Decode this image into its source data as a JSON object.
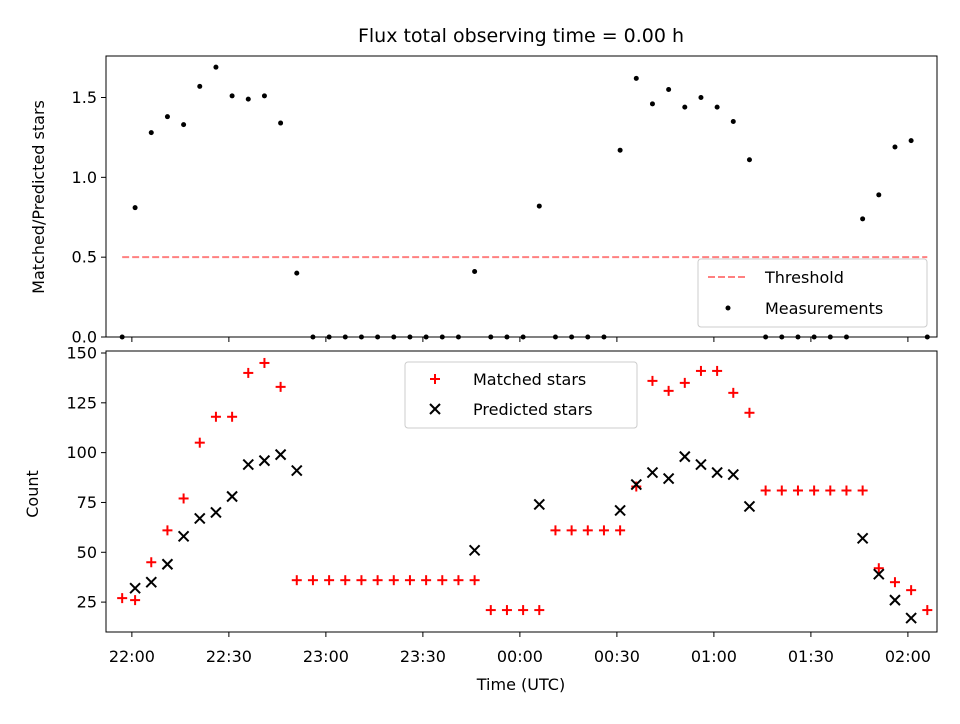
{
  "chart_data": [
    {
      "type": "scatter",
      "title": "Flux total observing time = 0.00 h",
      "xlabel": "",
      "ylabel": "Matched/Predicted stars",
      "ylim": [
        0,
        1.76
      ],
      "yticks": [
        0.0,
        0.5,
        1.0,
        1.5
      ],
      "ytick_labels": [
        "0.0",
        "0.5",
        "1.0",
        "1.5"
      ],
      "xlim": [
        "21:52",
        "02:09"
      ],
      "xticks": [
        "22:00",
        "22:30",
        "23:00",
        "23:30",
        "00:00",
        "00:30",
        "01:00",
        "01:30",
        "02:00"
      ],
      "grid": false,
      "legend_position": "lower-right",
      "threshold": {
        "name": "Threshold",
        "value": 0.5,
        "x_range": [
          "21:57",
          "02:06"
        ],
        "color": "#ff8080",
        "style": "dashed"
      },
      "series": [
        {
          "name": "Measurements",
          "color": "#000000",
          "marker": "dot",
          "x": [
            "21:57",
            "22:01",
            "22:06",
            "22:11",
            "22:16",
            "22:21",
            "22:26",
            "22:31",
            "22:36",
            "22:41",
            "22:46",
            "22:51",
            "22:56",
            "23:01",
            "23:06",
            "23:11",
            "23:16",
            "23:21",
            "23:26",
            "23:31",
            "23:36",
            "23:41",
            "23:46",
            "23:51",
            "23:56",
            "00:01",
            "00:06",
            "00:11",
            "00:16",
            "00:21",
            "00:26",
            "00:31",
            "00:36",
            "00:41",
            "00:46",
            "00:51",
            "00:56",
            "01:01",
            "01:06",
            "01:11",
            "01:16",
            "01:21",
            "01:26",
            "01:31",
            "01:36",
            "01:41",
            "01:46",
            "01:51",
            "01:56",
            "02:01",
            "02:06"
          ],
          "y": [
            0.0,
            0.81,
            1.28,
            1.38,
            1.33,
            1.57,
            1.69,
            1.51,
            1.49,
            1.51,
            1.34,
            0.4,
            0.0,
            0.0,
            0.0,
            0.0,
            0.0,
            0.0,
            0.0,
            0.0,
            0.0,
            0.0,
            0.41,
            0.0,
            0.0,
            0.0,
            0.82,
            0.0,
            0.0,
            0.0,
            0.0,
            1.17,
            1.62,
            1.46,
            1.55,
            1.44,
            1.5,
            1.44,
            1.35,
            1.11,
            0.0,
            0.0,
            0.0,
            0.0,
            0.0,
            0.0,
            0.74,
            0.89,
            1.19,
            1.23,
            0.0
          ]
        }
      ]
    },
    {
      "type": "scatter",
      "title": "",
      "xlabel": "Time (UTC)",
      "ylabel": "Count",
      "ylim": [
        10,
        151
      ],
      "yticks": [
        25,
        50,
        75,
        100,
        125,
        150
      ],
      "ytick_labels": [
        "25",
        "50",
        "75",
        "100",
        "125",
        "150"
      ],
      "xlim": [
        "21:52",
        "02:09"
      ],
      "xticks": [
        "22:00",
        "22:30",
        "23:00",
        "23:30",
        "00:00",
        "00:30",
        "01:00",
        "01:30",
        "02:00"
      ],
      "xtick_labels": [
        "22:00",
        "22:30",
        "23:00",
        "23:30",
        "00:00",
        "00:30",
        "01:00",
        "01:30",
        "02:00"
      ],
      "grid": false,
      "legend_position": "upper-center",
      "series": [
        {
          "name": "Matched stars",
          "color": "#ff0000",
          "marker": "plus",
          "x": [
            "21:57",
            "22:01",
            "22:06",
            "22:11",
            "22:16",
            "22:21",
            "22:26",
            "22:31",
            "22:36",
            "22:41",
            "22:46",
            "22:51",
            "22:56",
            "23:01",
            "23:06",
            "23:11",
            "23:16",
            "23:21",
            "23:26",
            "23:31",
            "23:36",
            "23:41",
            "23:46",
            "23:51",
            "23:56",
            "00:01",
            "00:06",
            "00:11",
            "00:16",
            "00:21",
            "00:26",
            "00:31",
            "00:36",
            "00:41",
            "00:46",
            "00:51",
            "00:56",
            "01:01",
            "01:06",
            "01:11",
            "01:16",
            "01:21",
            "01:26",
            "01:31",
            "01:36",
            "01:41",
            "01:46",
            "01:51",
            "01:56",
            "02:01",
            "02:06"
          ],
          "y": [
            27,
            26,
            45,
            61,
            77,
            105,
            118,
            118,
            140,
            145,
            133,
            36,
            36,
            36,
            36,
            36,
            36,
            36,
            36,
            36,
            36,
            36,
            36,
            21,
            21,
            21,
            21,
            61,
            61,
            61,
            61,
            61,
            83,
            136,
            131,
            135,
            141,
            141,
            130,
            120,
            81,
            81,
            81,
            81,
            81,
            81,
            81,
            42,
            35,
            31,
            21
          ]
        },
        {
          "name": "Predicted stars",
          "color": "#000000",
          "marker": "x",
          "x": [
            "22:01",
            "22:06",
            "22:11",
            "22:16",
            "22:21",
            "22:26",
            "22:31",
            "22:36",
            "22:41",
            "22:46",
            "22:51",
            "23:46",
            "00:06",
            "00:31",
            "00:36",
            "00:41",
            "00:46",
            "00:51",
            "00:56",
            "01:01",
            "01:06",
            "01:11",
            "01:46",
            "01:51",
            "01:56",
            "02:01"
          ],
          "y": [
            32,
            35,
            44,
            58,
            67,
            70,
            78,
            94,
            96,
            99,
            91,
            51,
            74,
            71,
            84,
            90,
            87,
            98,
            94,
            90,
            89,
            73,
            57,
            39,
            26,
            17
          ]
        }
      ]
    }
  ]
}
